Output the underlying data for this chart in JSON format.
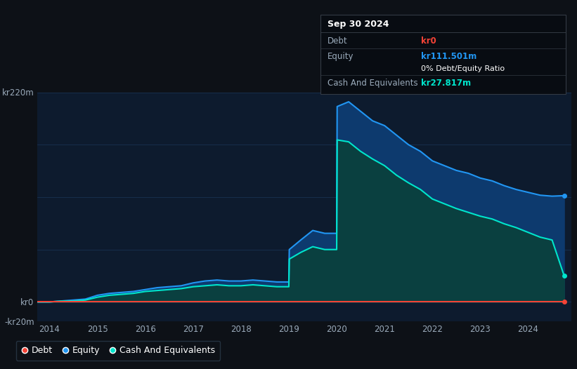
{
  "background_color": "#0d1117",
  "plot_bg_color": "#0d1b2e",
  "title_box": {
    "date": "Sep 30 2024",
    "debt_label": "Debt",
    "debt_value": "kr0",
    "equity_label": "Equity",
    "equity_value": "kr111.501m",
    "ratio_text": "0% Debt/Equity Ratio",
    "cash_label": "Cash And Equivalents",
    "cash_value": "kr27.817m"
  },
  "years": [
    2013.75,
    2014.0,
    2014.25,
    2014.5,
    2014.75,
    2015.0,
    2015.25,
    2015.5,
    2015.75,
    2016.0,
    2016.25,
    2016.5,
    2016.75,
    2017.0,
    2017.25,
    2017.5,
    2017.75,
    2018.0,
    2018.25,
    2018.5,
    2018.75,
    2019.0,
    2019.01,
    2019.25,
    2019.5,
    2019.75,
    2020.0,
    2020.01,
    2020.25,
    2020.5,
    2020.75,
    2021.0,
    2021.25,
    2021.5,
    2021.75,
    2022.0,
    2022.25,
    2022.5,
    2022.75,
    2023.0,
    2023.25,
    2023.5,
    2023.75,
    2024.0,
    2024.25,
    2024.5,
    2024.75
  ],
  "equity": [
    0,
    0,
    1,
    2,
    3,
    7,
    9,
    10,
    11,
    13,
    15,
    16,
    17,
    20,
    22,
    23,
    22,
    22,
    23,
    22,
    21,
    21,
    55,
    65,
    75,
    72,
    72,
    205,
    210,
    200,
    190,
    185,
    175,
    165,
    158,
    148,
    143,
    138,
    135,
    130,
    127,
    122,
    118,
    115,
    112,
    111,
    111.5
  ],
  "cash": [
    0,
    0,
    1,
    1,
    2,
    5,
    7,
    8,
    9,
    11,
    12,
    13,
    14,
    16,
    17,
    18,
    17,
    17,
    18,
    17,
    16,
    16,
    45,
    52,
    58,
    55,
    55,
    170,
    168,
    158,
    150,
    143,
    133,
    125,
    118,
    108,
    103,
    98,
    94,
    90,
    87,
    82,
    78,
    73,
    68,
    65,
    27.8
  ],
  "debt": [
    0,
    0,
    0,
    0,
    0,
    0,
    0,
    0,
    0,
    0,
    0,
    0,
    0,
    0,
    0,
    0,
    0,
    0,
    0,
    0,
    0,
    0,
    0,
    0,
    0,
    0,
    0,
    0,
    0,
    0,
    0,
    0,
    0,
    0,
    0,
    0,
    0,
    0,
    0,
    0,
    0,
    0,
    0,
    0,
    0,
    0,
    0
  ],
  "ylim": [
    -20,
    220
  ],
  "yticks": [
    -20,
    0,
    110,
    220
  ],
  "ytick_labels": [
    "-kr20m",
    "kr0",
    "",
    "kr220m"
  ],
  "xticks": [
    2014,
    2015,
    2016,
    2017,
    2018,
    2019,
    2020,
    2021,
    2022,
    2023,
    2024
  ],
  "equity_line_color": "#2196f3",
  "equity_fill_color": "#0d3a6e",
  "cash_line_color": "#00e5cc",
  "cash_fill_color": "#0a4040",
  "debt_line_color": "#f44336",
  "grid_color": "#1e3a5f",
  "text_color": "#9aaaba",
  "legend_bg": "#0d1117",
  "legend_border": "#2a3a4a",
  "tooltip_bg": "#080c12",
  "tooltip_border": "#333a44"
}
